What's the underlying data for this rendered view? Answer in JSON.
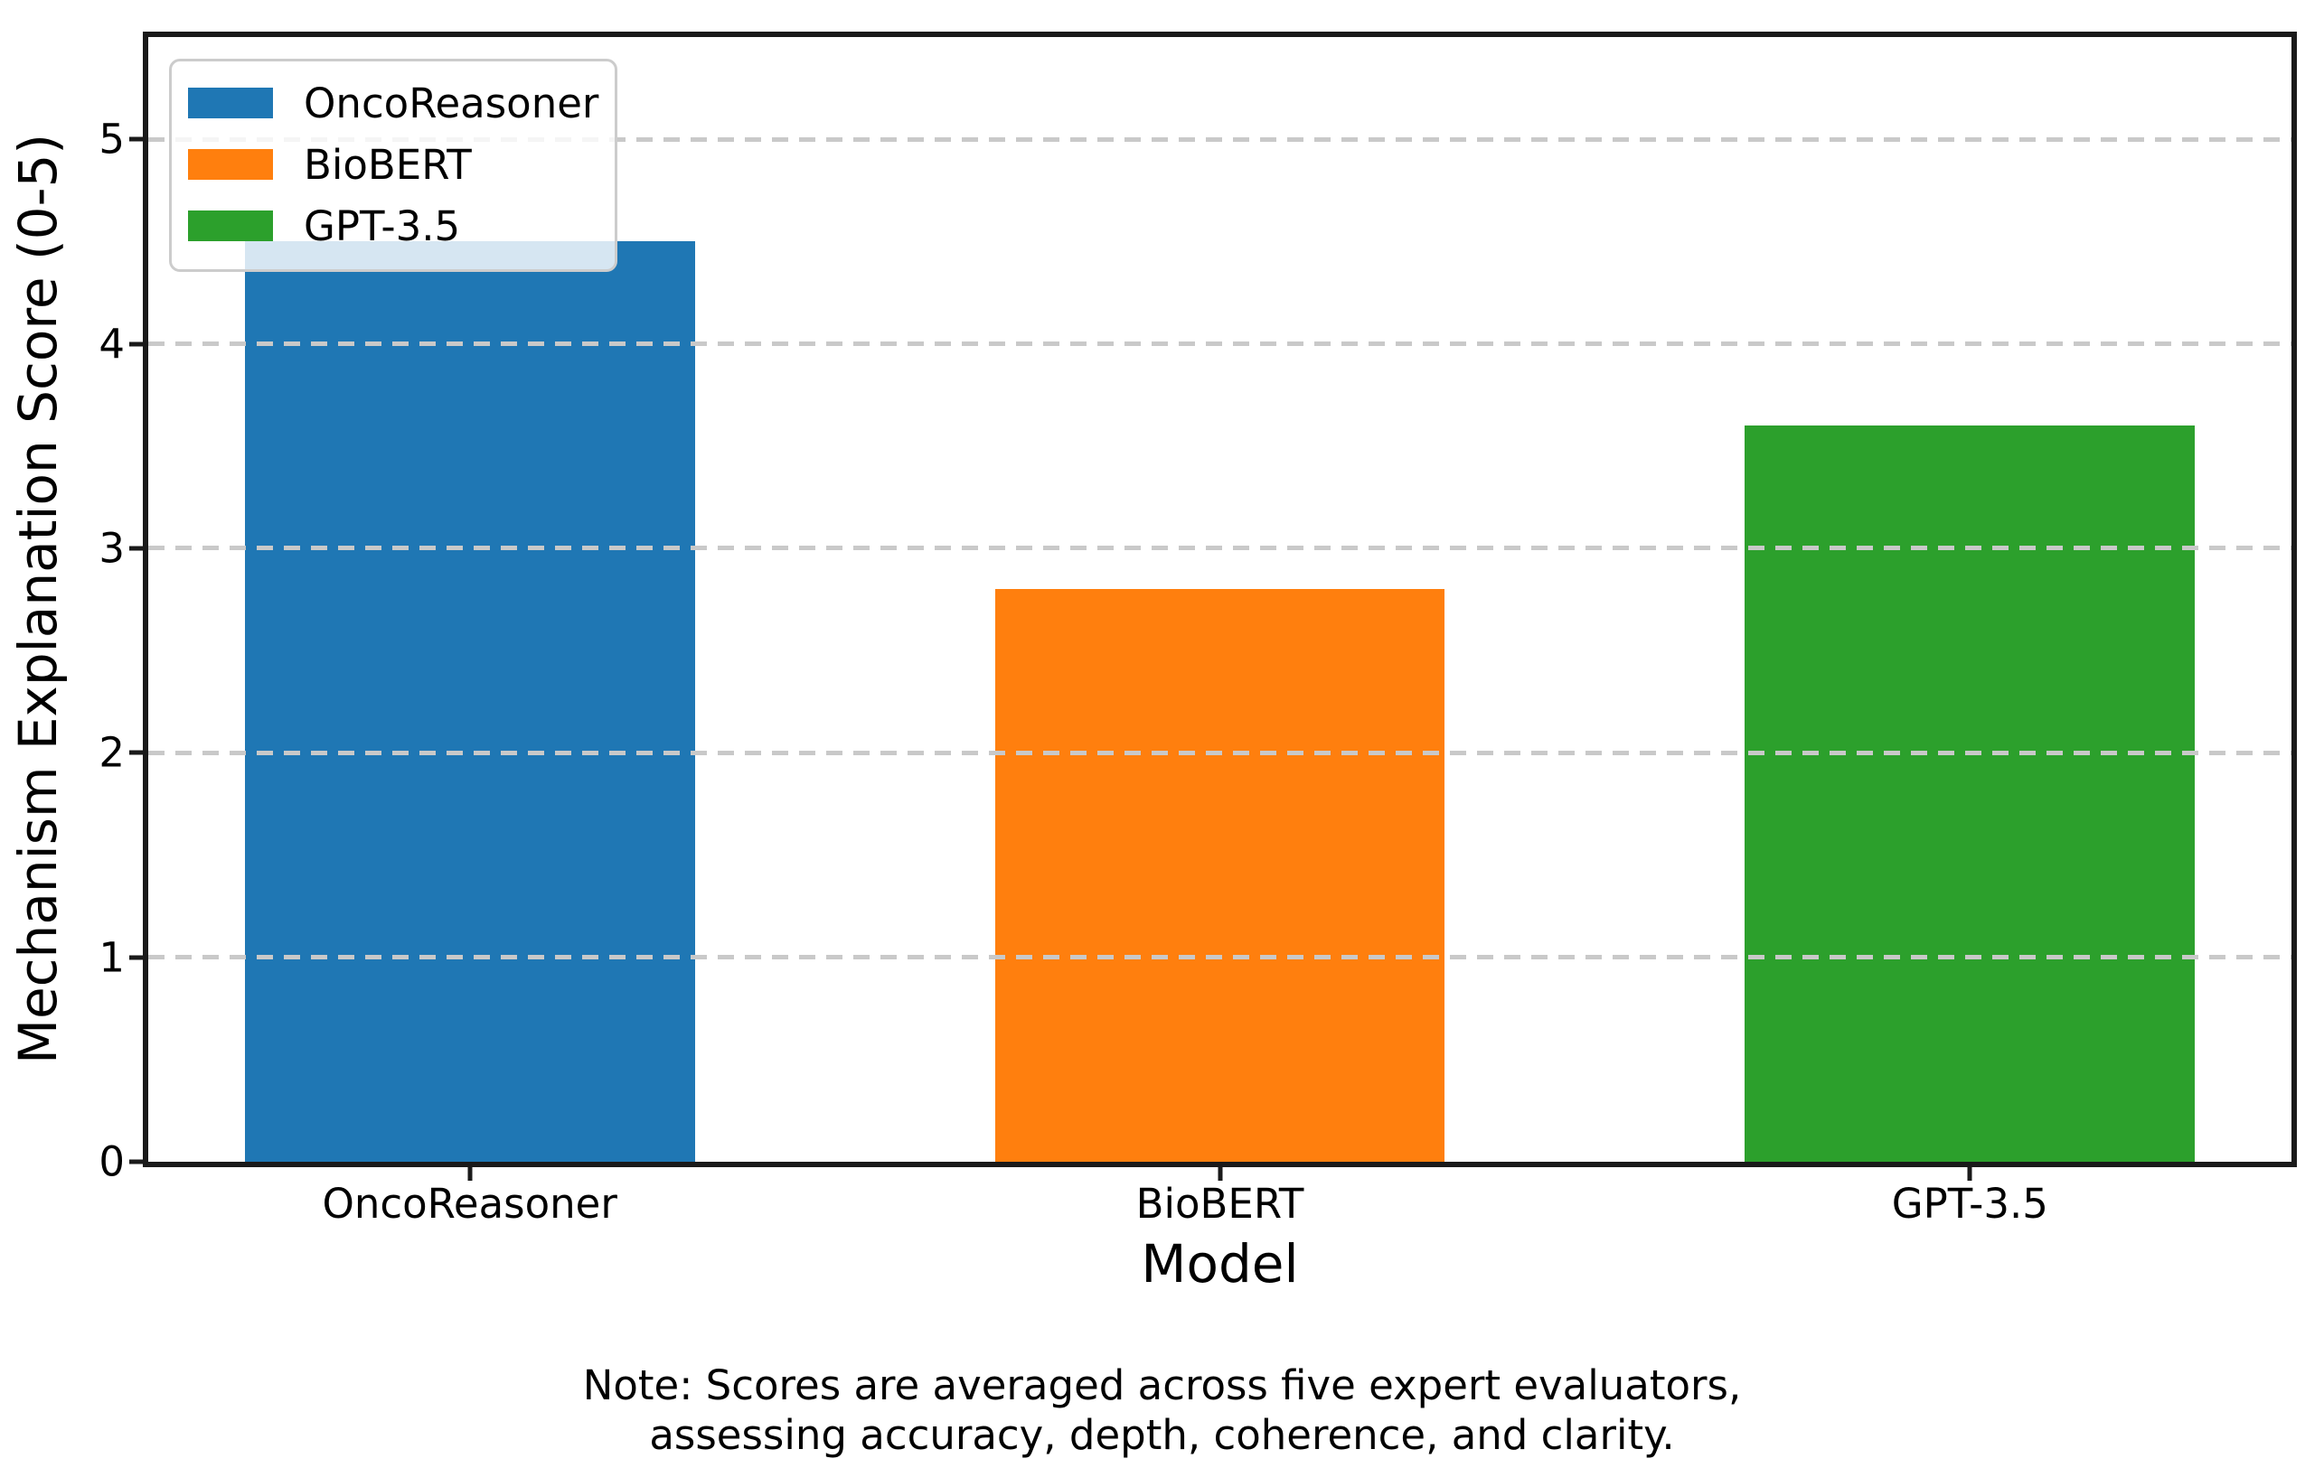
{
  "chart_data": {
    "type": "bar",
    "title": "",
    "categories": [
      "OncoReasoner",
      "BioBERT",
      "GPT-3.5"
    ],
    "values": [
      4.5,
      2.8,
      3.6
    ],
    "series": [
      {
        "name": "OncoReasoner",
        "value": 4.5,
        "color": "#1f77b4"
      },
      {
        "name": "BioBERT",
        "value": 2.8,
        "color": "#ff7f0e"
      },
      {
        "name": "GPT-3.5",
        "value": 3.6,
        "color": "#2ca02c"
      }
    ],
    "xlabel": "Model",
    "ylabel": "Mechanism Explanation Score (0-5)",
    "ylim": [
      0,
      5.5
    ],
    "yticks": [
      0,
      1,
      2,
      3,
      4,
      5
    ],
    "xlim": [
      -0.4286,
      2.4286
    ],
    "bar_width": 0.6,
    "grid": "horizontal-dashed",
    "grid_color": "#c9c9c9",
    "legend_position": "upper-left",
    "legend": [
      "OncoReasoner",
      "BioBERT",
      "GPT-3.5"
    ]
  },
  "figure": {
    "note_lines": [
      "Note: Scores are averaged across five expert evaluators,",
      "assessing accuracy, depth, coherence, and clarity."
    ]
  }
}
